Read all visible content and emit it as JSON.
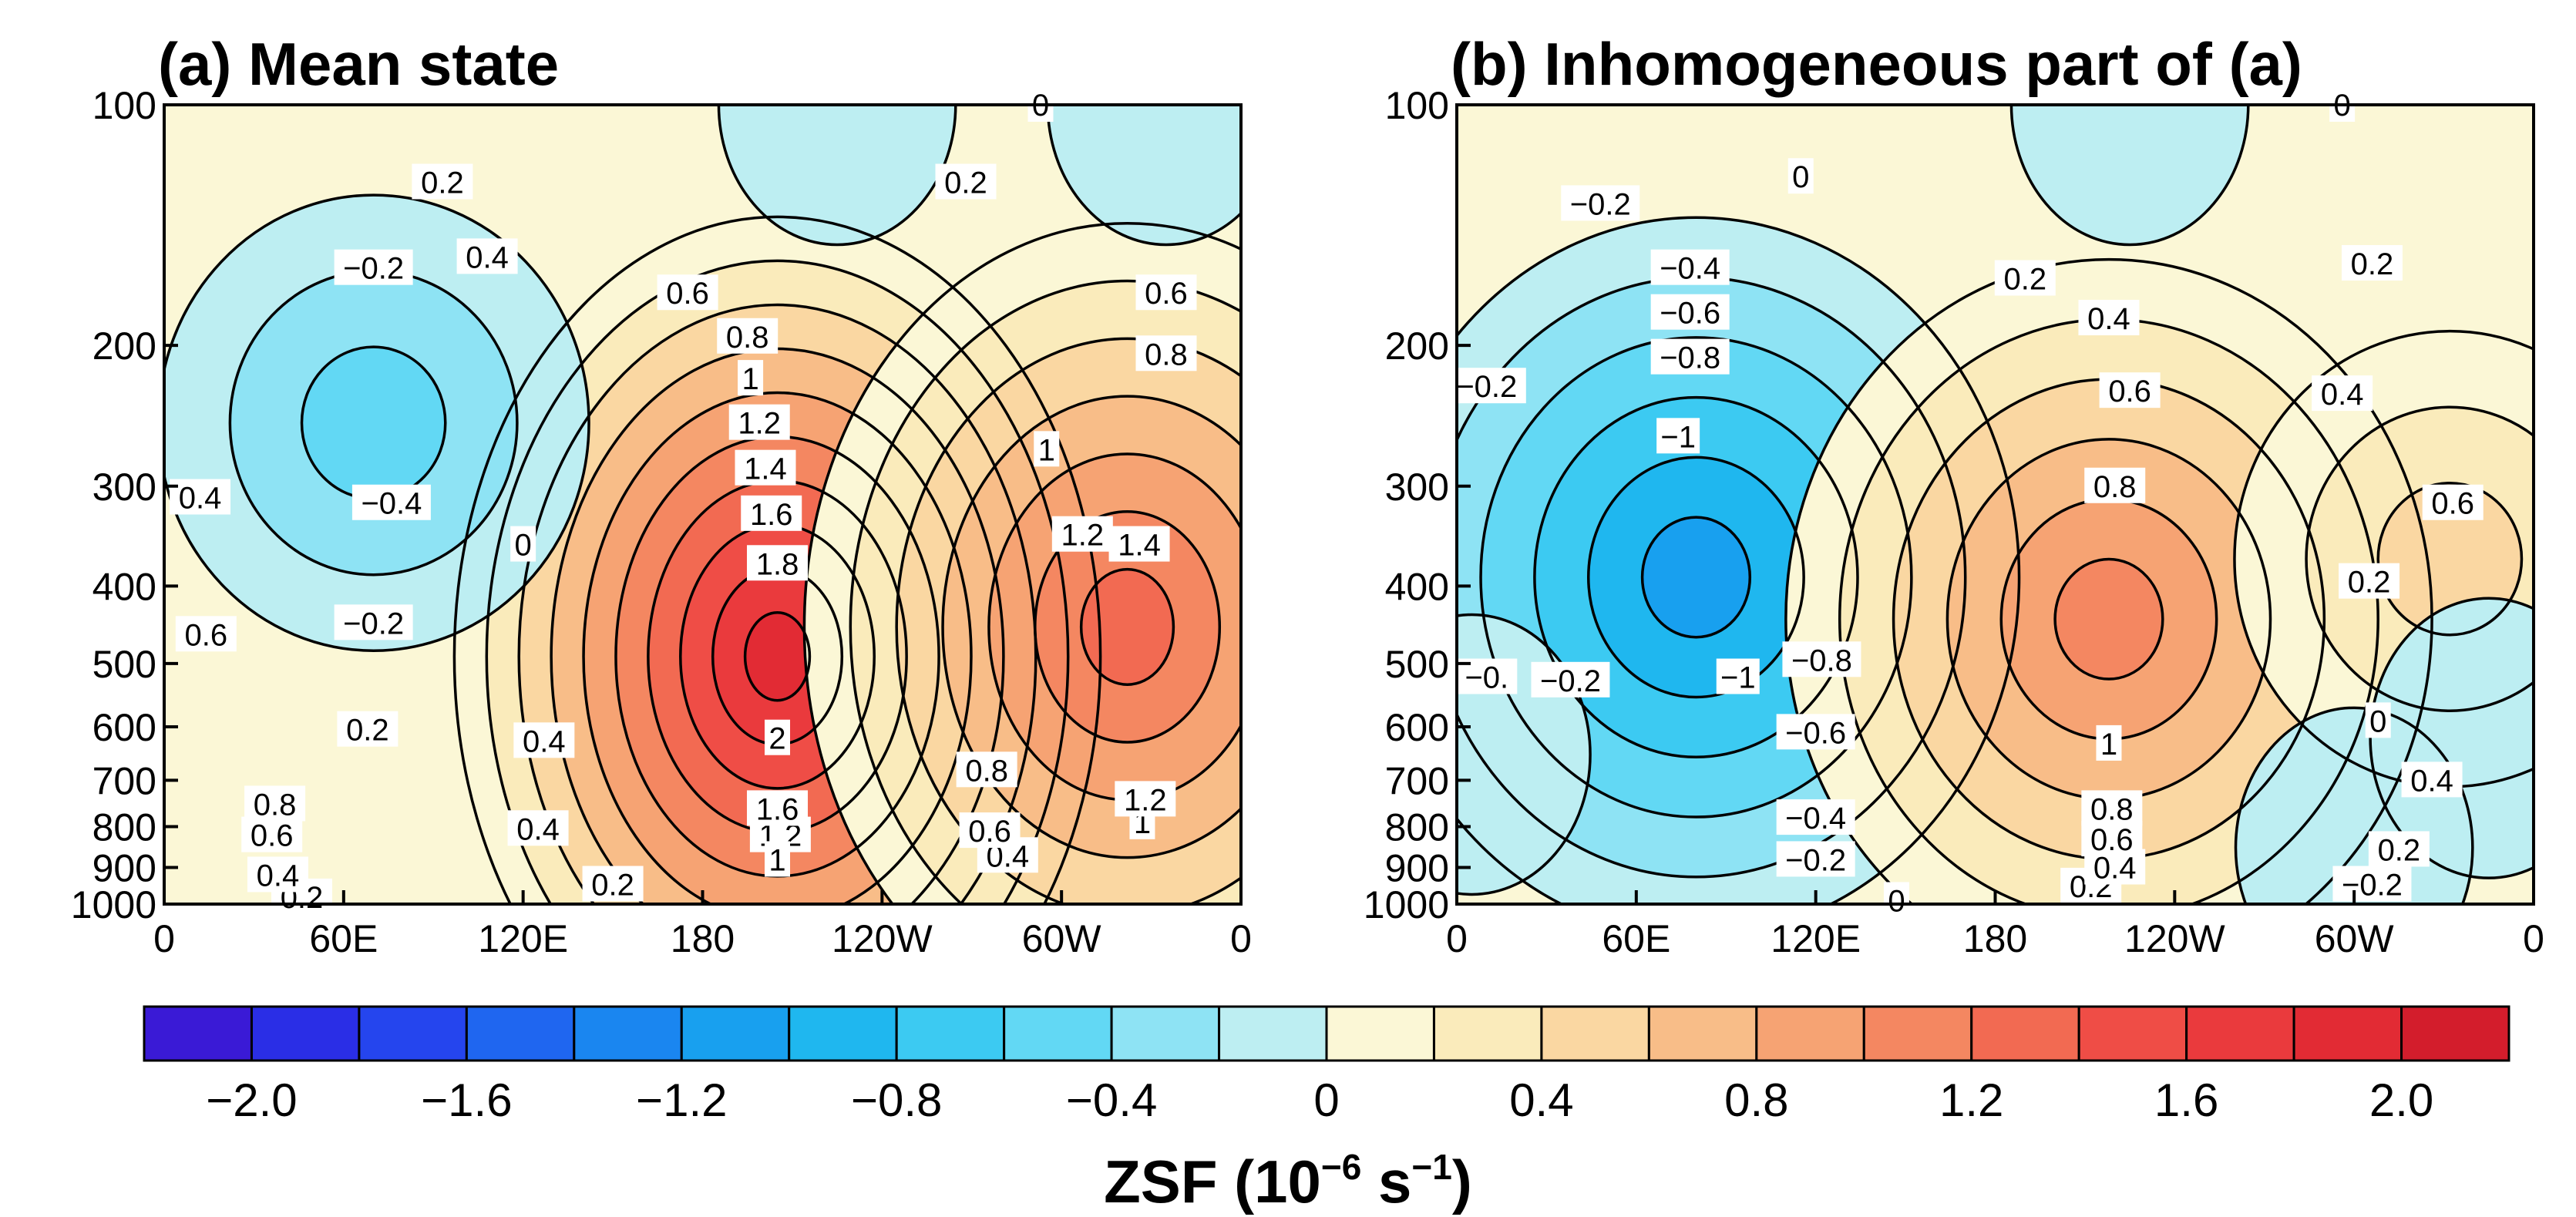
{
  "chart_data": [
    {
      "type": "heatmap",
      "panel": "a",
      "title": "(a) Mean state",
      "xlabel": "",
      "ylabel": "",
      "x_ticks": [
        "0",
        "60E",
        "120E",
        "180",
        "120W",
        "60W",
        "0"
      ],
      "y_ticks": [
        "100",
        "200",
        "300",
        "400",
        "500",
        "600",
        "700",
        "800",
        "900",
        "1000"
      ],
      "y_scale": "log",
      "ylim": [
        1000,
        100
      ],
      "xlim": [
        0,
        360
      ],
      "extrema": [
        {
          "lon": 205,
          "p": 490,
          "value": 2.0
        },
        {
          "lon": 322,
          "p": 450,
          "value": 1.45
        },
        {
          "lon": 70,
          "p": 250,
          "value": -0.5
        },
        {
          "lon": 225,
          "p": 100,
          "value": -0.25
        },
        {
          "lon": 335,
          "p": 100,
          "value": -0.1
        }
      ],
      "contour_labels": [
        {
          "text": "0.2",
          "lon": 93,
          "p": 125
        },
        {
          "text": "0.2",
          "lon": 268,
          "p": 125
        },
        {
          "text": "0.2",
          "lon": 68,
          "p": 605
        },
        {
          "text": "0.2",
          "lon": 150,
          "p": 945
        },
        {
          "text": "0.2",
          "lon": 46,
          "p": 980
        },
        {
          "text": "0",
          "lon": 293,
          "p": 100
        },
        {
          "text": "0",
          "lon": 120,
          "p": 355
        },
        {
          "text": "-0.2",
          "lon": 70,
          "p": 160
        },
        {
          "text": "-0.2",
          "lon": 70,
          "p": 445
        },
        {
          "text": "-0.4",
          "lon": 76,
          "p": 315
        },
        {
          "text": "0.4",
          "lon": 108,
          "p": 155
        },
        {
          "text": "0.4",
          "lon": 12,
          "p": 310
        },
        {
          "text": "0.4",
          "lon": 127,
          "p": 625
        },
        {
          "text": "0.4",
          "lon": 125,
          "p": 805
        },
        {
          "text": "0.4",
          "lon": 282,
          "p": 870
        },
        {
          "text": "0.4",
          "lon": 38,
          "p": 920
        },
        {
          "text": "0.6",
          "lon": 175,
          "p": 172
        },
        {
          "text": "0.6",
          "lon": 335,
          "p": 172
        },
        {
          "text": "0.6",
          "lon": 14,
          "p": 460
        },
        {
          "text": "0.6",
          "lon": 276,
          "p": 810
        },
        {
          "text": "0.6",
          "lon": 36,
          "p": 820
        },
        {
          "text": "0.8",
          "lon": 195,
          "p": 195
        },
        {
          "text": "0.8",
          "lon": 335,
          "p": 205
        },
        {
          "text": "0.8",
          "lon": 275,
          "p": 680
        },
        {
          "text": "0.8",
          "lon": 37,
          "p": 750
        },
        {
          "text": "1",
          "lon": 196,
          "p": 220
        },
        {
          "text": "1",
          "lon": 295,
          "p": 270
        },
        {
          "text": "1",
          "lon": 327,
          "p": 790
        },
        {
          "text": "1.2",
          "lon": 199,
          "p": 250
        },
        {
          "text": "1.2",
          "lon": 307,
          "p": 345
        },
        {
          "text": "1.2",
          "lon": 328,
          "p": 740
        },
        {
          "text": "1.2",
          "lon": 206,
          "p": 820
        },
        {
          "text": "1.4",
          "lon": 201,
          "p": 285
        },
        {
          "text": "1.4",
          "lon": 326,
          "p": 355
        },
        {
          "text": "1.6",
          "lon": 203,
          "p": 325
        },
        {
          "text": "1.6",
          "lon": 205,
          "p": 760
        },
        {
          "text": "1.8",
          "lon": 205,
          "p": 375
        },
        {
          "text": "2",
          "lon": 205,
          "p": 620
        },
        {
          "text": "1",
          "lon": 205,
          "p": 880
        }
      ]
    },
    {
      "type": "heatmap",
      "panel": "b",
      "title": "(b) Inhomogeneous part of (a)",
      "xlabel": "",
      "ylabel": "",
      "x_ticks": [
        "0",
        "60E",
        "120E",
        "180",
        "120W",
        "60W",
        "0"
      ],
      "y_ticks": [
        "100",
        "200",
        "300",
        "400",
        "500",
        "600",
        "700",
        "800",
        "900",
        "1000"
      ],
      "y_scale": "log",
      "ylim": [
        1000,
        100
      ],
      "xlim": [
        0,
        360
      ],
      "extrema": [
        {
          "lon": 80,
          "p": 390,
          "value": -1.15
        },
        {
          "lon": 218,
          "p": 440,
          "value": 1.1
        },
        {
          "lon": 332,
          "p": 370,
          "value": 0.65
        },
        {
          "lon": 225,
          "p": 100,
          "value": -0.3
        },
        {
          "lon": 5,
          "p": 650,
          "value": -0.3
        },
        {
          "lon": 345,
          "p": 620,
          "value": -0.3
        },
        {
          "lon": 300,
          "p": 850,
          "value": -0.3
        }
      ],
      "contour_labels": [
        {
          "text": "0",
          "lon": 115,
          "p": 123
        },
        {
          "text": "0",
          "lon": 296,
          "p": 100
        },
        {
          "text": "0",
          "lon": 308,
          "p": 590
        },
        {
          "text": "0",
          "lon": 147,
          "p": 990
        },
        {
          "text": "-0.2",
          "lon": 48,
          "p": 133
        },
        {
          "text": "-0.2",
          "lon": 10,
          "p": 225
        },
        {
          "text": "-0.2",
          "lon": 38,
          "p": 525
        },
        {
          "text": "-0.2",
          "lon": 120,
          "p": 880
        },
        {
          "text": "-0.2",
          "lon": 306,
          "p": 945
        },
        {
          "text": "-0.",
          "lon": 10,
          "p": 520
        },
        {
          "text": "-0.4",
          "lon": 78,
          "p": 160
        },
        {
          "text": "-0.4",
          "lon": 120,
          "p": 780
        },
        {
          "text": "-0.6",
          "lon": 78,
          "p": 182
        },
        {
          "text": "-0.6",
          "lon": 120,
          "p": 610
        },
        {
          "text": "-0.8",
          "lon": 78,
          "p": 207
        },
        {
          "text": "-0.8",
          "lon": 122,
          "p": 495
        },
        {
          "text": "-1",
          "lon": 74,
          "p": 260
        },
        {
          "text": "-1",
          "lon": 94,
          "p": 520
        },
        {
          "text": "0.2",
          "lon": 190,
          "p": 165
        },
        {
          "text": "0.2",
          "lon": 306,
          "p": 158
        },
        {
          "text": "0.2",
          "lon": 305,
          "p": 395
        },
        {
          "text": "0.2",
          "lon": 315,
          "p": 855
        },
        {
          "text": "0.2",
          "lon": 212,
          "p": 950
        },
        {
          "text": "0.4",
          "lon": 218,
          "p": 185
        },
        {
          "text": "0.4",
          "lon": 296,
          "p": 230
        },
        {
          "text": "0.4",
          "lon": 326,
          "p": 700
        },
        {
          "text": "0.4",
          "lon": 220,
          "p": 900
        },
        {
          "text": "0.6",
          "lon": 225,
          "p": 228
        },
        {
          "text": "0.6",
          "lon": 333,
          "p": 315
        },
        {
          "text": "0.6",
          "lon": 219,
          "p": 830
        },
        {
          "text": "0.8",
          "lon": 220,
          "p": 300
        },
        {
          "text": "0.8",
          "lon": 219,
          "p": 760
        },
        {
          "text": "1",
          "lon": 218,
          "p": 630
        }
      ]
    }
  ],
  "colorbar": {
    "label_main": "ZSF (10",
    "label_exp1": "−6",
    "label_mid": " s",
    "label_exp2": "−1",
    "label_end": ")",
    "boundaries": [
      -2.2,
      -2.0,
      -1.8,
      -1.6,
      -1.4,
      -1.2,
      -1.0,
      -0.8,
      -0.6,
      -0.4,
      -0.2,
      0,
      0.2,
      0.4,
      0.6,
      0.8,
      1.0,
      1.2,
      1.4,
      1.6,
      1.8,
      2.0,
      2.2
    ],
    "tick_labels": [
      "−2.0",
      "−1.6",
      "−1.2",
      "−0.8",
      "−0.4",
      "0",
      "0.4",
      "0.8",
      "1.2",
      "1.6",
      "2.0"
    ],
    "tick_values": [
      -2.0,
      -1.6,
      -1.2,
      -0.8,
      -0.4,
      0,
      0.4,
      0.8,
      1.2,
      1.6,
      2.0
    ],
    "colors": [
      "#3a1ad6",
      "#2a2ee6",
      "#2545ee",
      "#1f66f0",
      "#1a86f0",
      "#18a0ef",
      "#1fb7ef",
      "#3ccaf2",
      "#62d8f4",
      "#8ee3f4",
      "#bdeef2",
      "#fbf7d6",
      "#faebbb",
      "#fad7a2",
      "#f8bd88",
      "#f6a373",
      "#f48761",
      "#f26a52",
      "#ef4d46",
      "#ea3a3d",
      "#e22b34",
      "#d31d2c"
    ]
  }
}
